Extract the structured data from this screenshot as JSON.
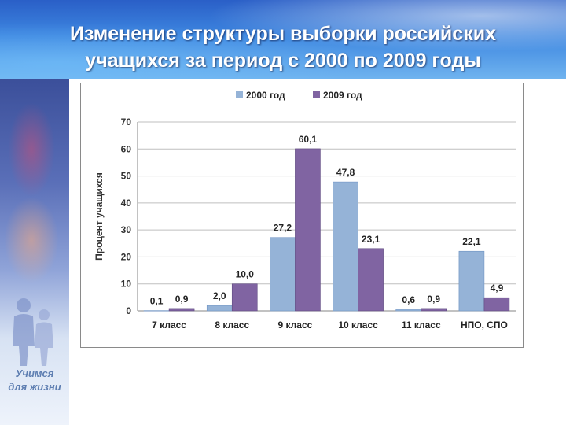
{
  "slide": {
    "title_line1": "Изменение структуры выборки российских",
    "title_line2": "учащихся за период с 2000 по 2009 годы",
    "slogan_line1": "Учимся",
    "slogan_line2": "для жизни"
  },
  "colors": {
    "series_2000": "#95b3d7",
    "series_2009": "#8064a2",
    "gridline": "#bfbfbf",
    "title_text": "#ffffff",
    "slogan_text": "#5f7fb2"
  },
  "chart_data": {
    "type": "bar",
    "title": "",
    "xlabel": "",
    "ylabel": "Процент учащихся",
    "ylim": [
      0,
      70
    ],
    "yticks": [
      0,
      10,
      20,
      30,
      40,
      50,
      60,
      70
    ],
    "grid": true,
    "legend_position": "top",
    "categories": [
      "7 класс",
      "8 класс",
      "9 класс",
      "10 класс",
      "11 класс",
      "НПО, СПО"
    ],
    "series": [
      {
        "name": "2000 год",
        "values": [
          0.1,
          2.0,
          27.2,
          47.8,
          0.6,
          22.1
        ],
        "labels": [
          "0,1",
          "2,0",
          "27,2",
          "47,8",
          "0,6",
          "22,1"
        ]
      },
      {
        "name": "2009 год",
        "values": [
          0.9,
          10.0,
          60.1,
          23.1,
          0.9,
          4.9
        ],
        "labels": [
          "0,9",
          "10,0",
          "60,1",
          "23,1",
          "0,9",
          "4,9"
        ]
      }
    ]
  }
}
